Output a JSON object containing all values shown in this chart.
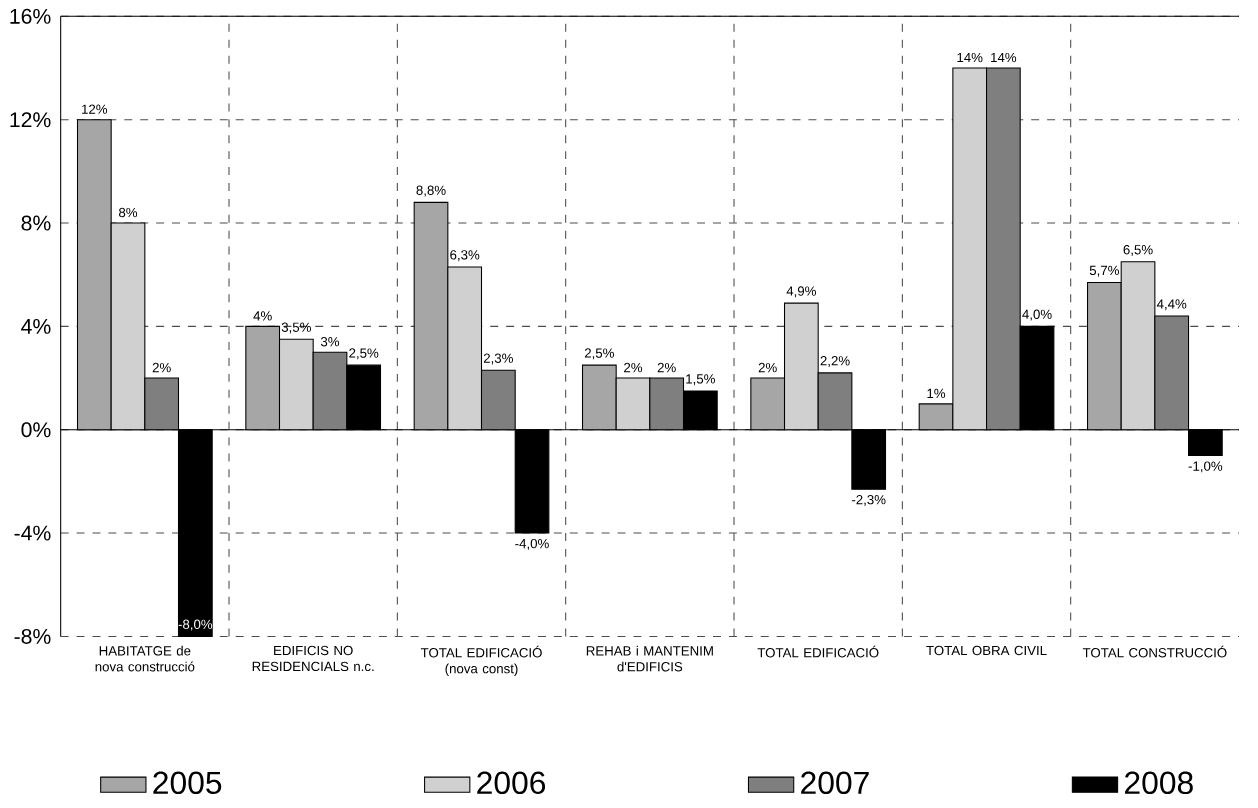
{
  "chart_data": {
    "type": "bar",
    "categories": [
      "HABITATGE de nova construcció",
      "EDIFICIS NO RESIDENCIALS n.c.",
      "TOTAL EDIFICACIÓ (nova const)",
      "REHAB i MANTENIM d'EDIFICIS",
      "TOTAL EDIFICACIÓ",
      "TOTAL OBRA CIVIL",
      "TOTAL CONSTRUCCIÓ"
    ],
    "series": [
      {
        "name": "2005",
        "color": "#a6a6a6",
        "values": [
          12,
          4,
          8.8,
          2.5,
          2,
          1,
          5.7
        ],
        "value_labels": [
          "12%",
          "4%",
          "8,8%",
          "2,5%",
          "2%",
          "1%",
          "5,7%"
        ]
      },
      {
        "name": "2006",
        "color": "#d0d0d0",
        "values": [
          8,
          3.5,
          6.3,
          2,
          4.9,
          14,
          6.5
        ],
        "value_labels": [
          "8%",
          "3,5%",
          "6,3%",
          "2%",
          "4,9%",
          "14%",
          "6,5%"
        ]
      },
      {
        "name": "2007",
        "color": "#7f7f7f",
        "values": [
          2,
          3,
          2.3,
          2,
          2.2,
          14,
          4.4
        ],
        "value_labels": [
          "2%",
          "3%",
          "2,3%",
          "2%",
          "2,2%",
          "14%",
          "4,4%"
        ]
      },
      {
        "name": "2008",
        "color": "#000000",
        "values": [
          -8.0,
          2.5,
          -4.0,
          1.5,
          -2.3,
          4.0,
          -1.0
        ],
        "value_labels": [
          "-8,0%",
          "2,5%",
          "-4,0%",
          "1,5%",
          "-2,3%",
          "4,0%",
          "-1,0%"
        ]
      }
    ],
    "ylim": [
      -8,
      16
    ],
    "yticks": [
      {
        "value": -8,
        "label": "-8%"
      },
      {
        "value": -4,
        "label": "-4%"
      },
      {
        "value": 0,
        "label": "0%"
      },
      {
        "value": 4,
        "label": "4%"
      },
      {
        "value": 8,
        "label": "8%"
      },
      {
        "value": 12,
        "label": "12%"
      },
      {
        "value": 16,
        "label": "16%"
      }
    ],
    "grid": true,
    "legend": "bottom"
  }
}
